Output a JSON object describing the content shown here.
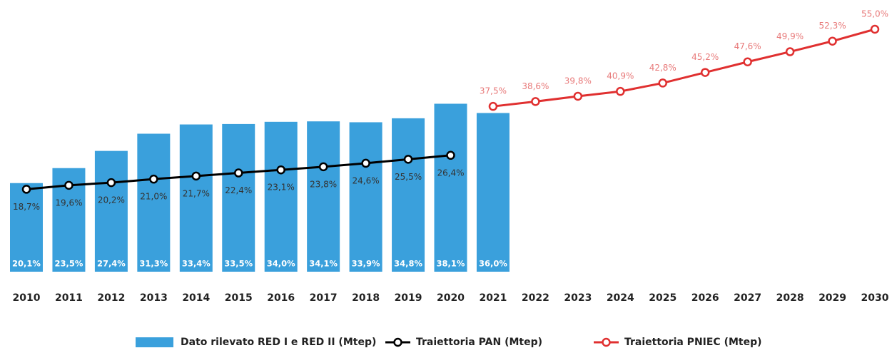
{
  "chart_data": {
    "type": "bar",
    "categories": [
      "2010",
      "2011",
      "2012",
      "2013",
      "2014",
      "2015",
      "2016",
      "2017",
      "2018",
      "2019",
      "2020",
      "2021",
      "2022",
      "2023",
      "2024",
      "2025",
      "2026",
      "2027",
      "2028",
      "2029",
      "2030"
    ],
    "series": [
      {
        "name": "Dato rilevato RED I e RED II (Mtep)",
        "type": "bar",
        "color": "#3aa0dc",
        "values": [
          20.1,
          23.5,
          27.4,
          31.3,
          33.4,
          33.5,
          34.0,
          34.1,
          33.9,
          34.8,
          38.1,
          36.0,
          null,
          null,
          null,
          null,
          null,
          null,
          null,
          null,
          null
        ],
        "value_labels": [
          "20,1%",
          "23,5%",
          "27,4%",
          "31,3%",
          "33,4%",
          "33,5%",
          "34,0%",
          "34,1%",
          "33,9%",
          "34,8%",
          "38,1%",
          "36,0%",
          null,
          null,
          null,
          null,
          null,
          null,
          null,
          null,
          null
        ]
      },
      {
        "name": "Traiettoria PAN (Mtep)",
        "type": "line",
        "color": "#000000",
        "values": [
          18.7,
          19.6,
          20.2,
          21.0,
          21.7,
          22.4,
          23.1,
          23.8,
          24.6,
          25.5,
          26.4,
          null,
          null,
          null,
          null,
          null,
          null,
          null,
          null,
          null,
          null
        ],
        "value_labels": [
          "18,7%",
          "19,6%",
          "20,2%",
          "21,0%",
          "21,7%",
          "22,4%",
          "23,1%",
          "23,8%",
          "24,6%",
          "25,5%",
          "26,4%",
          null,
          null,
          null,
          null,
          null,
          null,
          null,
          null,
          null,
          null
        ]
      },
      {
        "name": "Traiettoria PNIEC (Mtep)",
        "type": "line",
        "color": "#e03030",
        "values": [
          null,
          null,
          null,
          null,
          null,
          null,
          null,
          null,
          null,
          null,
          null,
          37.5,
          38.6,
          39.8,
          40.9,
          42.8,
          45.2,
          47.6,
          49.9,
          52.3,
          55.0
        ],
        "value_labels": [
          null,
          null,
          null,
          null,
          null,
          null,
          null,
          null,
          null,
          null,
          null,
          "37,5%",
          "38,6%",
          "39,8%",
          "40,9%",
          "42,8%",
          "45,2%",
          "47,6%",
          "49,9%",
          "52,3%",
          "55,0%"
        ]
      }
    ]
  }
}
